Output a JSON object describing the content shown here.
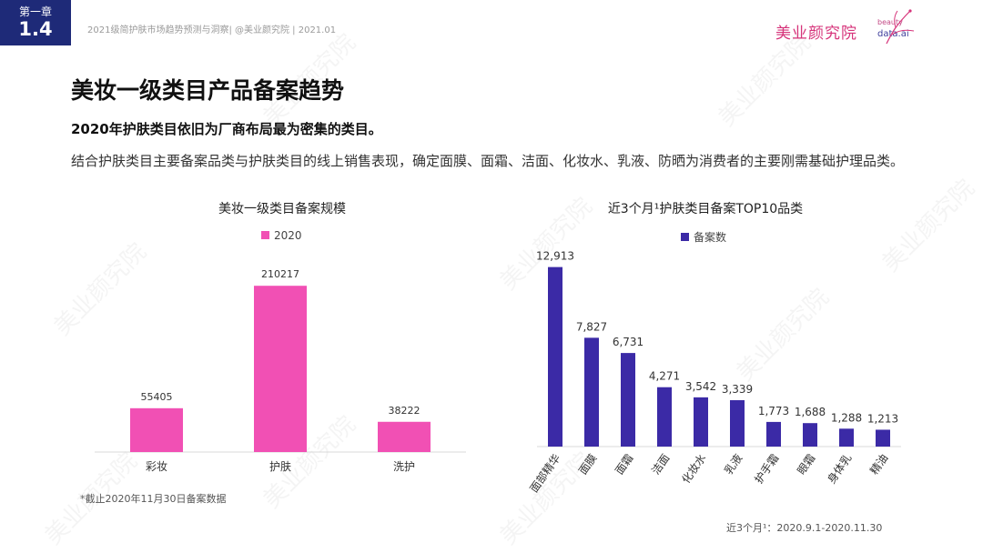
{
  "header": {
    "chapter_label": "第一章",
    "chapter_number": "1.4",
    "meta": "2021级简护肤市场趋势预测与洞察| @美业颜究院 | 2021.01",
    "logo_cn": "美业颜究院",
    "logo_en_1": "beauty",
    "logo_en_2": "data.ai"
  },
  "watermark_text": "美业颜究院",
  "title": "美妆一级类目产品备案趋势",
  "subtitle": "2020年护肤类目依旧为厂商布局最为密集的类目。",
  "body": "结合护肤类目主要备案品类与护肤类目的线上销售表现，确定面膜、面霜、洁面、化妆水、乳液、防晒为消费者的主要刚需基础护理品类。",
  "footnote_left": "*截止2020年11月30日备案数据",
  "footnote_right": "近3个月¹：2020.9.1-2020.11.30",
  "colors": {
    "brand_navy": "#1e2a78",
    "pink": "#f150b4",
    "indigo": "#3b2aa6",
    "logo_pink": "#d6337a"
  },
  "chart_data": [
    {
      "type": "bar",
      "title": "美妆一级类目备案规模",
      "legend": [
        "2020"
      ],
      "categories": [
        "彩妆",
        "护肤",
        "洗护"
      ],
      "series": [
        {
          "name": "2020",
          "values": [
            55405,
            210217,
            38222
          ],
          "labels": [
            "55405",
            "210217",
            "38222"
          ]
        }
      ],
      "ylim": [
        0,
        230000
      ],
      "grid": false,
      "legend_position": "top"
    },
    {
      "type": "bar",
      "title": "近3个月¹护肤类目备案TOP10品类",
      "legend": [
        "备案数"
      ],
      "categories": [
        "面部精华",
        "面膜",
        "面霜",
        "洁面",
        "化妆水",
        "乳液",
        "护手霜",
        "眼霜",
        "身体乳",
        "精油"
      ],
      "series": [
        {
          "name": "备案数",
          "values": [
            12913,
            7827,
            6731,
            4271,
            3542,
            3339,
            1773,
            1688,
            1288,
            1213
          ],
          "labels": [
            "12,913",
            "7,827",
            "6,731",
            "4,271",
            "3,542",
            "3,339",
            "1,773",
            "1,688",
            "1,288",
            "1,213"
          ]
        }
      ],
      "ylim": [
        0,
        14000
      ],
      "grid": false,
      "legend_position": "top"
    }
  ]
}
